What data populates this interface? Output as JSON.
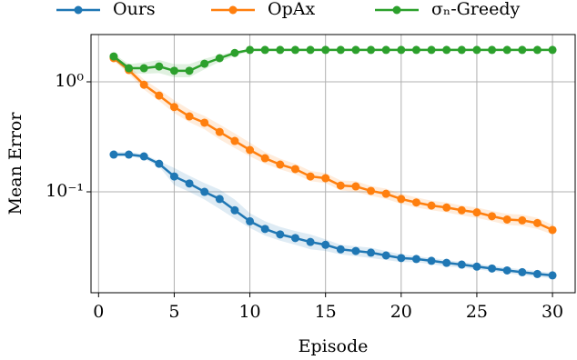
{
  "chart_data": {
    "type": "line",
    "xlabel": "Episode",
    "ylabel": "Mean Error",
    "x": [
      1,
      2,
      3,
      4,
      5,
      6,
      7,
      8,
      9,
      10,
      11,
      12,
      13,
      14,
      15,
      16,
      17,
      18,
      19,
      20,
      21,
      22,
      23,
      24,
      25,
      26,
      27,
      28,
      29,
      30
    ],
    "xlim": [
      -0.5,
      31.5
    ],
    "xticks": [
      0,
      5,
      10,
      15,
      20,
      25,
      30
    ],
    "ylim": [
      0.0121,
      2.69
    ],
    "yscale": "log",
    "yticks": [
      {
        "value": 1,
        "label": "10⁰"
      },
      {
        "value": 0.1,
        "label": "10⁻¹"
      }
    ],
    "grid": true,
    "legend": "top",
    "series": [
      {
        "name": "Ours",
        "color": "#1f77b4",
        "values": [
          0.218,
          0.218,
          0.21,
          0.18,
          0.138,
          0.119,
          0.1,
          0.086,
          0.068,
          0.054,
          0.046,
          0.041,
          0.038,
          0.035,
          0.033,
          0.03,
          0.029,
          0.028,
          0.0264,
          0.025,
          0.0245,
          0.0236,
          0.0226,
          0.0218,
          0.0209,
          0.0201,
          0.0193,
          0.0186,
          0.0179,
          0.0174
        ],
        "lower": [
          0.21,
          0.21,
          0.2,
          0.17,
          0.115,
          0.1,
          0.085,
          0.07,
          0.057,
          0.047,
          0.04,
          0.036,
          0.033,
          0.03,
          0.029,
          0.027,
          0.026,
          0.025,
          0.024,
          0.023,
          0.023,
          0.022,
          0.021,
          0.0205,
          0.0197,
          0.019,
          0.0182,
          0.0175,
          0.0169,
          0.0164
        ],
        "upper": [
          0.23,
          0.23,
          0.22,
          0.19,
          0.165,
          0.14,
          0.12,
          0.105,
          0.085,
          0.064,
          0.054,
          0.048,
          0.044,
          0.041,
          0.037,
          0.033,
          0.032,
          0.031,
          0.029,
          0.027,
          0.026,
          0.025,
          0.024,
          0.023,
          0.0222,
          0.0212,
          0.0204,
          0.0197,
          0.019,
          0.0184
        ]
      },
      {
        "name": "OpAx",
        "color": "#ff7f0e",
        "values": [
          1.64,
          1.28,
          0.94,
          0.75,
          0.59,
          0.485,
          0.425,
          0.35,
          0.29,
          0.24,
          0.202,
          0.177,
          0.161,
          0.138,
          0.133,
          0.114,
          0.112,
          0.102,
          0.096,
          0.086,
          0.08,
          0.075,
          0.072,
          0.068,
          0.065,
          0.06,
          0.056,
          0.055,
          0.052,
          0.045
        ],
        "lower": [
          1.55,
          1.18,
          0.85,
          0.67,
          0.52,
          0.43,
          0.37,
          0.3,
          0.25,
          0.21,
          0.18,
          0.16,
          0.145,
          0.125,
          0.12,
          0.103,
          0.1,
          0.092,
          0.086,
          0.078,
          0.072,
          0.068,
          0.065,
          0.061,
          0.058,
          0.054,
          0.05,
          0.049,
          0.046,
          0.041
        ],
        "upper": [
          1.73,
          1.4,
          1.05,
          0.85,
          0.68,
          0.56,
          0.49,
          0.41,
          0.34,
          0.28,
          0.23,
          0.2,
          0.18,
          0.155,
          0.148,
          0.127,
          0.125,
          0.113,
          0.107,
          0.096,
          0.089,
          0.083,
          0.08,
          0.075,
          0.072,
          0.067,
          0.063,
          0.062,
          0.058,
          0.05
        ]
      },
      {
        "name": "σₙ-Greedy",
        "color": "#2ca02c",
        "values": [
          1.7,
          1.33,
          1.33,
          1.38,
          1.26,
          1.26,
          1.46,
          1.64,
          1.83,
          1.95,
          1.95,
          1.95,
          1.95,
          1.95,
          1.95,
          1.95,
          1.95,
          1.95,
          1.95,
          1.95,
          1.95,
          1.95,
          1.95,
          1.95,
          1.95,
          1.95,
          1.95,
          1.95,
          1.95,
          1.95
        ],
        "lower": [
          1.6,
          1.2,
          1.18,
          1.2,
          1.1,
          1.1,
          1.3,
          1.52,
          1.72,
          1.9,
          1.9,
          1.9,
          1.9,
          1.9,
          1.9,
          1.9,
          1.9,
          1.9,
          1.9,
          1.9,
          1.9,
          1.9,
          1.9,
          1.9,
          1.9,
          1.9,
          1.9,
          1.9,
          1.9,
          1.9
        ],
        "upper": [
          1.8,
          1.45,
          1.5,
          1.58,
          1.45,
          1.45,
          1.62,
          1.76,
          1.88,
          2.0,
          2.0,
          2.0,
          2.0,
          2.0,
          2.0,
          2.0,
          2.0,
          2.0,
          2.0,
          2.0,
          2.0,
          2.0,
          2.0,
          2.0,
          2.0,
          2.0,
          2.0,
          2.0,
          2.0,
          2.0
        ]
      }
    ]
  }
}
